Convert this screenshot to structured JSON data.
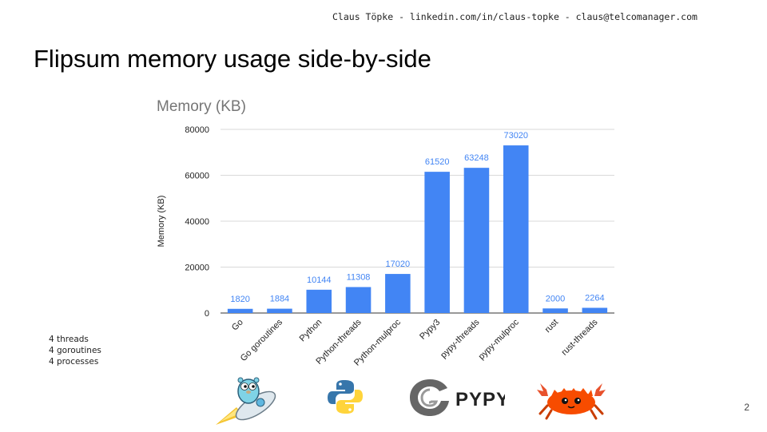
{
  "header": {
    "contact": "Claus Töpke - linkedin.com/in/claus-topke - claus@telcomanager.com"
  },
  "slide": {
    "title": "Flipsum memory usage side-by-side",
    "page_number": "2"
  },
  "notes": [
    "4 threads",
    "4 goroutines",
    "4 processes"
  ],
  "logos": [
    {
      "icon": "gopher-rocket-icon"
    },
    {
      "icon": "python-logo-icon"
    },
    {
      "icon": "pypy-logo-icon",
      "text": "PYPY"
    },
    {
      "icon": "rust-crab-icon"
    }
  ],
  "colors": {
    "bar": "#4285f4",
    "label": "#4285f4",
    "grid": "#d9d9d9",
    "axis_text": "#222222",
    "title": "#757575"
  },
  "chart_data": {
    "type": "bar",
    "title": "Memory (KB)",
    "xlabel": "",
    "ylabel": "Memory (KB)",
    "ylim": [
      0,
      80000
    ],
    "yticks": [
      0,
      20000,
      40000,
      60000,
      80000
    ],
    "grid": true,
    "legend": "none",
    "categories": [
      "Go",
      "Go goroutines",
      "Python",
      "Python-threads",
      "Python-mulproc",
      "Pypy3",
      "pypy-threads",
      "pypy-mulproc",
      "rust",
      "rust-threads"
    ],
    "values": [
      1820,
      1884,
      10144,
      11308,
      17020,
      61520,
      63248,
      73020,
      2000,
      2264
    ]
  }
}
